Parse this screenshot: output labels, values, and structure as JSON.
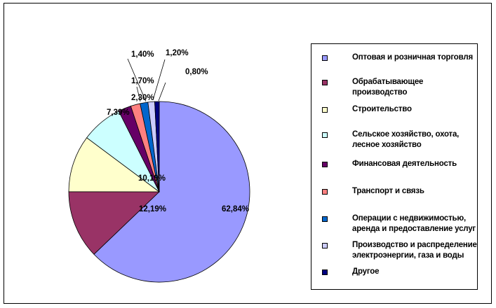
{
  "chart_data": {
    "type": "pie",
    "title": "",
    "slices": [
      {
        "label": "Оптовая  и розничная торговля",
        "value": 62.84,
        "display": "62,84%",
        "color": "#9999FF"
      },
      {
        "label": "Обрабатывающее  производство",
        "value": 12.19,
        "display": "12,19%",
        "color": "#993366"
      },
      {
        "label": "Строительство",
        "value": 10.19,
        "display": "10,19%",
        "color": "#FFFFCC"
      },
      {
        "label": "Сельское  хозяйство,  охота,\nлесное  хозяйство",
        "value": 7.39,
        "display": "7,39%",
        "color": "#CCFFFF"
      },
      {
        "label": "Финансовая деятельность",
        "value": 2.3,
        "display": "2,30%",
        "color": "#660066"
      },
      {
        "label": "Транспорт  и связь",
        "value": 1.7,
        "display": "1,70%",
        "color": "#FF8080"
      },
      {
        "label": "Операции  с недвижимостью,\nаренда и предоставление  услуг",
        "value": 1.4,
        "display": "1,40%",
        "color": "#0066CC"
      },
      {
        "label": "Производство  и распределение\nэлектроэнергии,  газа и воды",
        "value": 1.2,
        "display": "1,20%",
        "color": "#CCCCFF"
      },
      {
        "label": "Другое",
        "value": 0.8,
        "display": "0,80%",
        "color": "#000080"
      }
    ],
    "legend_position": "right"
  }
}
